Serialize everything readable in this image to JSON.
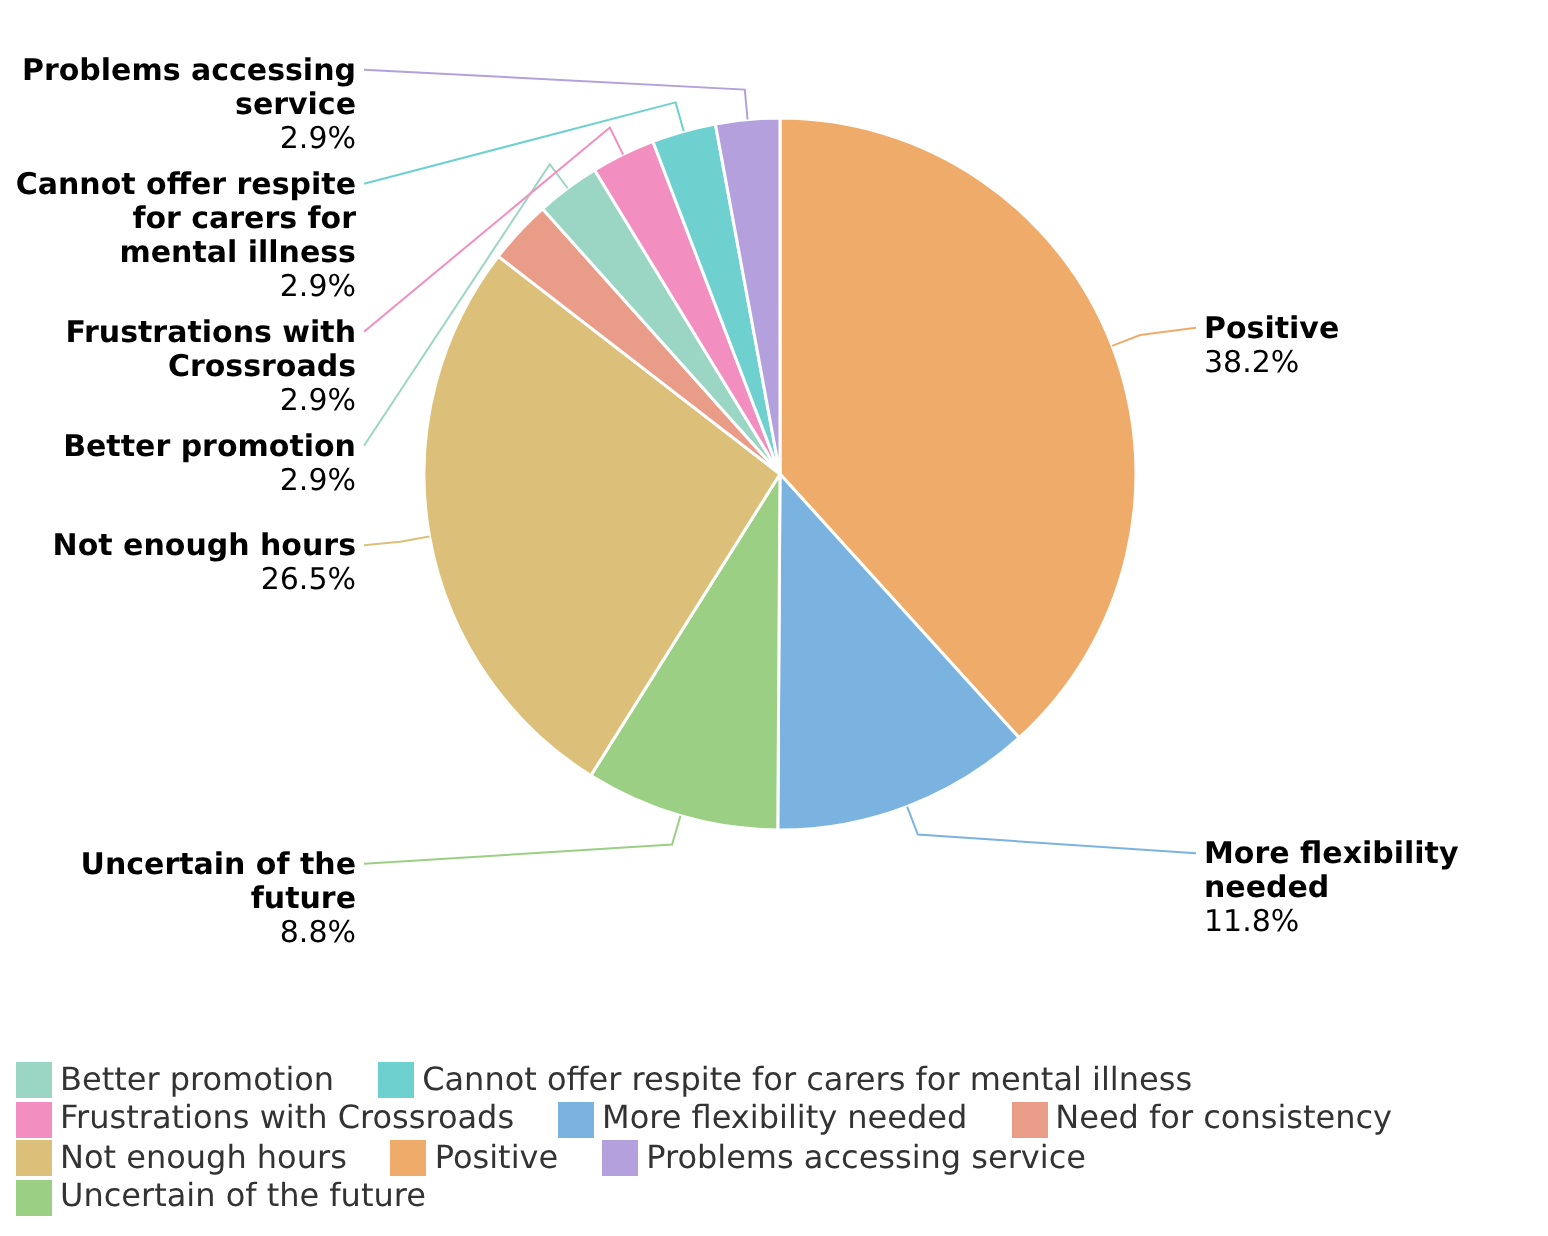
{
  "chart_data": {
    "type": "pie",
    "categories": [
      "Positive",
      "More flexibility needed",
      "Uncertain of the future",
      "Not enough hours",
      "Need for consistency",
      "Better promotion",
      "Frustrations with Crossroads",
      "Cannot offer respite for carers for mental illness",
      "Problems accessing service"
    ],
    "values": [
      38.2,
      11.8,
      8.8,
      26.5,
      2.9,
      2.9,
      2.9,
      2.9,
      2.9
    ],
    "colors": [
      "#eeab6a",
      "#7bb3e0",
      "#9bd084",
      "#dcc07a",
      "#e99c88",
      "#9bd6c4",
      "#f28ec0",
      "#6fd0d0",
      "#b3a0dc"
    ],
    "value_labels": [
      "38.2%",
      "11.8%",
      "8.8%",
      "26.5%",
      null,
      "2.9%",
      "2.9%",
      "2.9%",
      "2.9%"
    ],
    "legend": "bottom"
  }
}
